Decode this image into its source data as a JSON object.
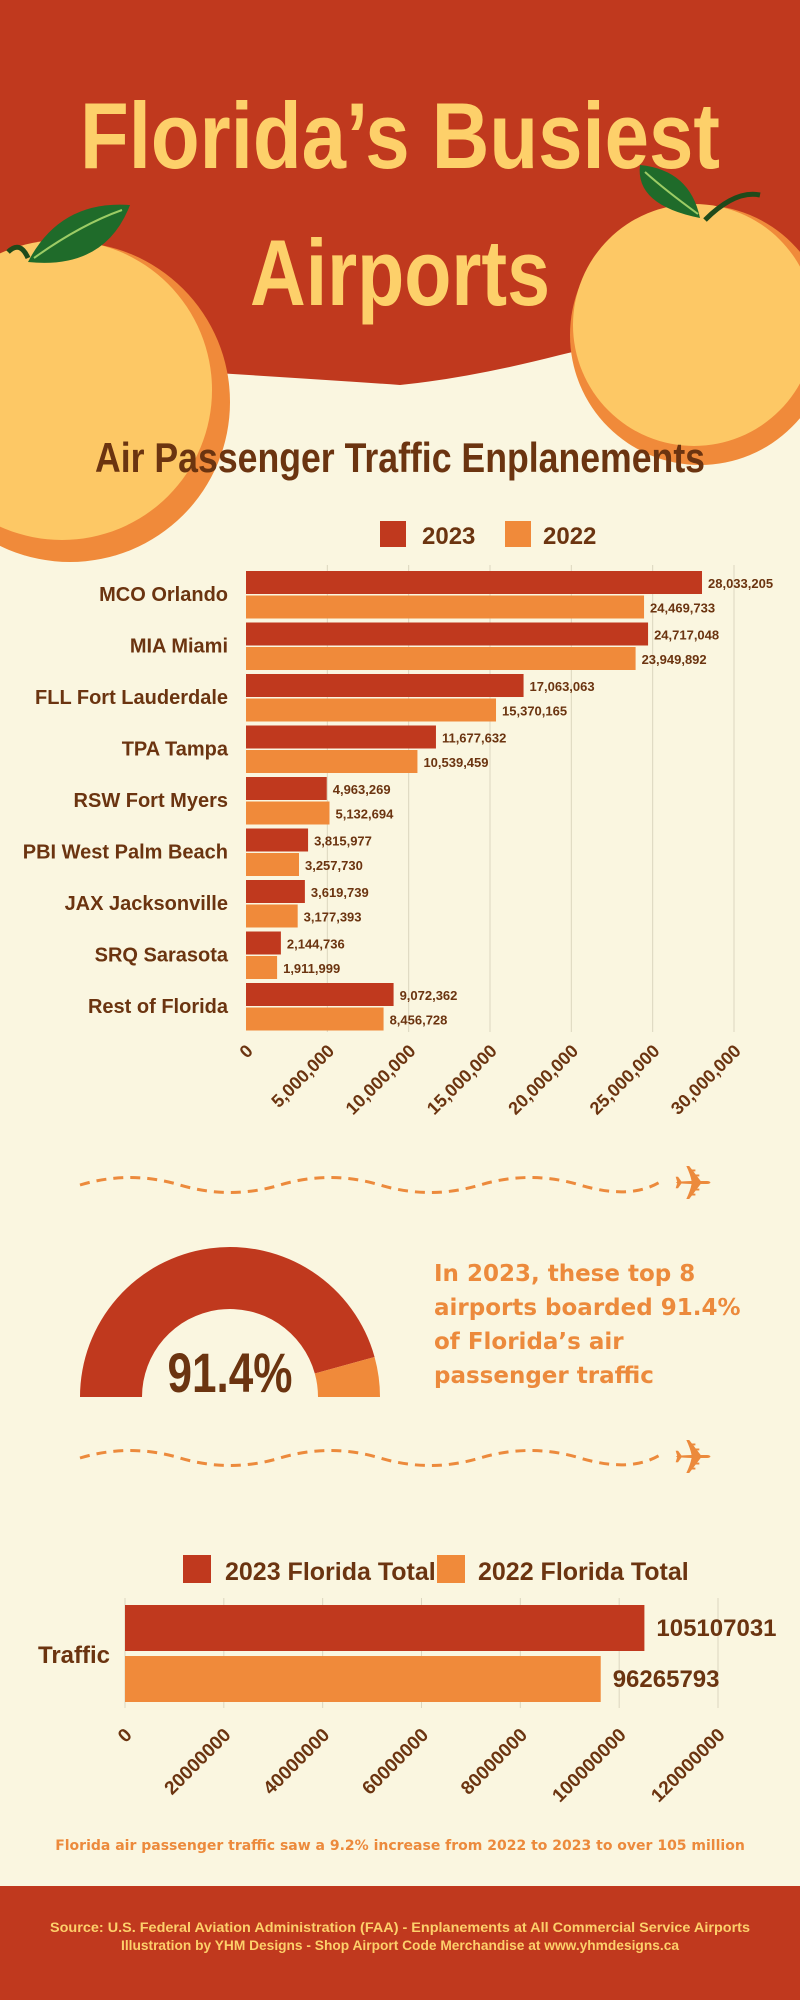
{
  "header": {
    "title_line1": "Florida’s Busiest",
    "title_line2": "Airports"
  },
  "colors": {
    "red": "#c0391e",
    "orange": "#f08a3a",
    "cream": "#faf6e0",
    "yellow": "#fdd06a",
    "text": "#6b3410",
    "leaf": "#1f6b2a"
  },
  "chart_data": [
    {
      "type": "bar",
      "orientation": "horizontal",
      "title": "Air Passenger Traffic Enplanements",
      "categories": [
        "MCO Orlando",
        "MIA Miami",
        "FLL Fort Lauderdale",
        "TPA Tampa",
        "RSW Fort Myers",
        "PBI West Palm Beach",
        "JAX Jacksonville",
        "SRQ Sarasota",
        "Rest of Florida"
      ],
      "series": [
        {
          "name": "2023",
          "values": [
            28033205,
            24717048,
            17063063,
            11677632,
            4963269,
            3815977,
            3619739,
            2144736,
            9072362
          ],
          "labels": [
            "28,033,205",
            "24,717,048",
            "17,063,063",
            "11,677,632",
            "4,963,269",
            "3,815,977",
            "3,619,739",
            "2,144,736",
            "9,072,362"
          ]
        },
        {
          "name": "2022",
          "values": [
            24469733,
            23949892,
            15370165,
            10539459,
            5132694,
            3257730,
            3177393,
            1911999,
            8456728
          ],
          "labels": [
            "24,469,733",
            "23,949,892",
            "15,370,165",
            "10,539,459",
            "5,132,694",
            "3,257,730",
            "3,177,393",
            "1,911,999",
            "8,456,728"
          ]
        }
      ],
      "xlim": [
        0,
        30000000
      ],
      "xticks": [
        "0",
        "5,000,000",
        "10,000,000",
        "15,000,000",
        "20,000,000",
        "25,000,000",
        "30,000,000"
      ],
      "grid": true,
      "legend": "top"
    },
    {
      "type": "bar",
      "orientation": "horizontal",
      "categories": [
        "Traffic"
      ],
      "series": [
        {
          "name": "2023 Florida Total",
          "values": [
            105107031
          ],
          "labels": [
            "105107031"
          ]
        },
        {
          "name": "2022 Florida Total",
          "values": [
            96265793
          ],
          "labels": [
            "96265793"
          ]
        }
      ],
      "xlim": [
        0,
        120000000
      ],
      "xticks": [
        "0",
        "20000000",
        "40000000",
        "60000000",
        "80000000",
        "100000000",
        "120000000"
      ],
      "grid": true,
      "legend": "top"
    }
  ],
  "gauge": {
    "value_percent": 91.4,
    "label": "91.4%"
  },
  "callout": {
    "lines": [
      "In 2023, these top 8",
      "airports boarded 91.4%",
      "of Florida’s air",
      "passenger traffic"
    ]
  },
  "caption": "Florida air passenger traffic saw a 9.2% increase from 2022 to 2023 to over 105 million",
  "footer": {
    "line1": "Source: U.S. Federal Aviation Administration (FAA) - Enplanements at All Commercial Service Airports",
    "line2": "Illustration by YHM Designs - Shop Airport Code Merchandise at www.yhmdesigns.ca"
  }
}
